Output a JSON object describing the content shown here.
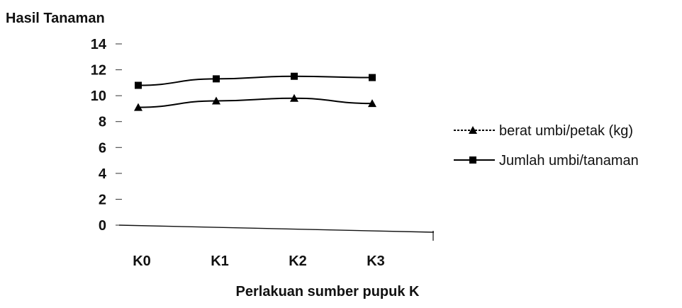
{
  "chart_data": {
    "type": "line",
    "title": "",
    "ylabel": "Hasil Tanaman",
    "xlabel": "Perlakuan sumber pupuk K",
    "categories": [
      "K0",
      "K1",
      "K2",
      "K3"
    ],
    "ylim": [
      0,
      14
    ],
    "yticks": [
      0,
      2,
      4,
      6,
      8,
      10,
      12,
      14
    ],
    "ytick_labels": [
      "0",
      "2",
      "4",
      "6",
      "8",
      "10",
      "12",
      "14"
    ],
    "grid": false,
    "legend_position": "right",
    "series": [
      {
        "name": "berat umbi/petak (kg)",
        "marker": "triangle",
        "color": "#000000",
        "values": [
          9.1,
          9.6,
          9.8,
          9.4
        ]
      },
      {
        "name": "Jumlah umbi/tanaman",
        "marker": "square",
        "color": "#000000",
        "values": [
          10.8,
          11.3,
          11.5,
          11.4
        ]
      }
    ]
  }
}
